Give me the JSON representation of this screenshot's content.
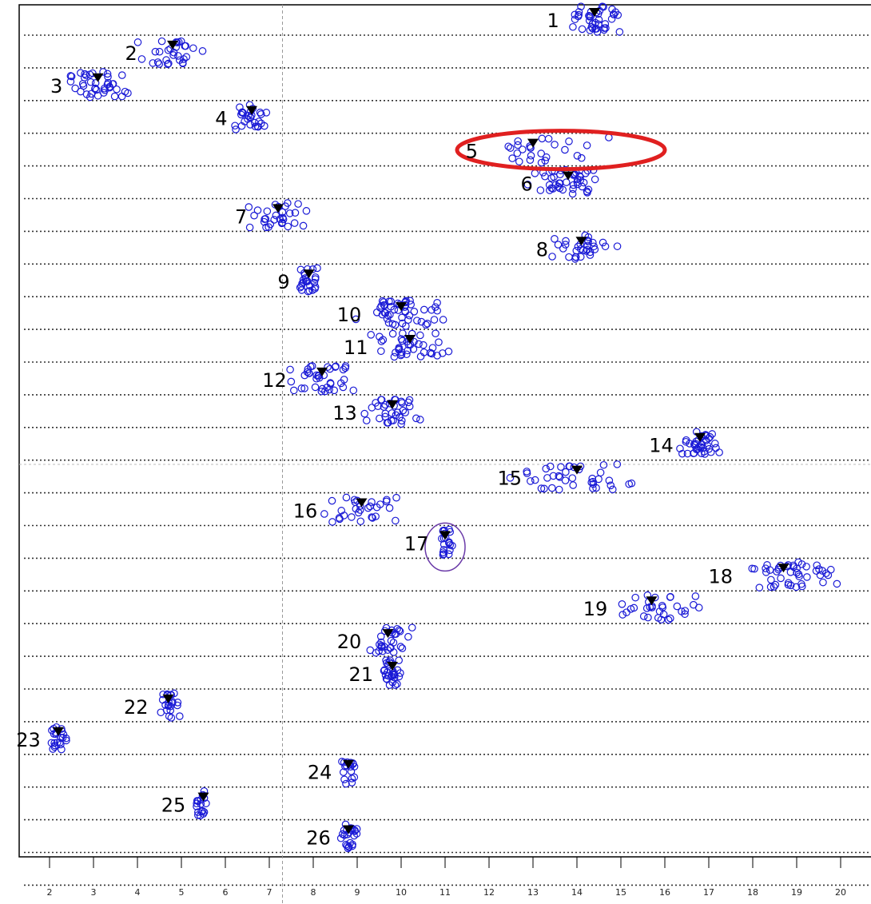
{
  "chart_data": {
    "type": "scatter",
    "title": "",
    "xlabel": "",
    "ylabel": "",
    "xlim": [
      1.0,
      20.5
    ],
    "grid": true,
    "x_ticks": [
      "2",
      "3",
      "4",
      "5",
      "6",
      "7",
      "8",
      "9",
      "10",
      "11",
      "12",
      "13",
      "14",
      "15",
      "16",
      "17",
      "18",
      "19",
      "20"
    ],
    "vertical_reference_x": 7.3,
    "point_color": "#1a1ad6",
    "marker_color": "#000000",
    "highlight_colors": {
      "row5": "#e02020",
      "row17": "#6a3aa8"
    },
    "rows": [
      {
        "label": "1",
        "center": 14.4,
        "spread": 0.55,
        "n": 40
      },
      {
        "label": "2",
        "center": 4.8,
        "spread": 0.55,
        "n": 30
      },
      {
        "label": "3",
        "center": 3.1,
        "spread": 0.55,
        "n": 40
      },
      {
        "label": "4",
        "center": 6.6,
        "spread": 0.3,
        "n": 28
      },
      {
        "label": "5",
        "center": 13.0,
        "spread": 1.0,
        "n": 26
      },
      {
        "label": "6",
        "center": 13.8,
        "spread": 0.55,
        "n": 45
      },
      {
        "label": "7",
        "center": 7.2,
        "spread": 0.45,
        "n": 30
      },
      {
        "label": "8",
        "center": 14.1,
        "spread": 0.5,
        "n": 32
      },
      {
        "label": "9",
        "center": 7.9,
        "spread": 0.18,
        "n": 25
      },
      {
        "label": "10",
        "center": 10.0,
        "spread": 0.65,
        "n": 50
      },
      {
        "label": "11",
        "center": 10.2,
        "spread": 0.7,
        "n": 40
      },
      {
        "label": "12",
        "center": 8.2,
        "spread": 0.55,
        "n": 38
      },
      {
        "label": "13",
        "center": 9.8,
        "spread": 0.55,
        "n": 35
      },
      {
        "label": "14",
        "center": 16.8,
        "spread": 0.35,
        "n": 38
      },
      {
        "label": "15",
        "center": 14.0,
        "spread": 1.0,
        "n": 40
      },
      {
        "label": "16",
        "center": 9.1,
        "spread": 0.75,
        "n": 30
      },
      {
        "label": "17",
        "center": 11.0,
        "spread": 0.12,
        "n": 20
      },
      {
        "label": "18",
        "center": 18.7,
        "spread": 0.9,
        "n": 45
      },
      {
        "label": "19",
        "center": 15.7,
        "spread": 0.75,
        "n": 32
      },
      {
        "label": "20",
        "center": 9.7,
        "spread": 0.35,
        "n": 30
      },
      {
        "label": "21",
        "center": 9.8,
        "spread": 0.18,
        "n": 28
      },
      {
        "label": "22",
        "center": 4.7,
        "spread": 0.2,
        "n": 22
      },
      {
        "label": "23",
        "center": 2.2,
        "spread": 0.15,
        "n": 22
      },
      {
        "label": "24",
        "center": 8.8,
        "spread": 0.12,
        "n": 18
      },
      {
        "label": "25",
        "center": 5.5,
        "spread": 0.15,
        "n": 18
      },
      {
        "label": "26",
        "center": 8.8,
        "spread": 0.15,
        "n": 24
      }
    ]
  }
}
